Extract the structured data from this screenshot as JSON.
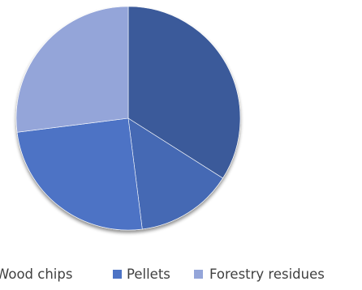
{
  "chart_data": {
    "type": "pie",
    "title": "",
    "categories": [
      "Wood chips",
      "Pellets",
      "Forestry residues"
    ],
    "slices": [
      {
        "label": "",
        "value": 34,
        "color": "#3b5a9a"
      },
      {
        "label": "Wood chips",
        "value": 14,
        "color": "#4469b4"
      },
      {
        "label": "Pellets",
        "value": 25,
        "color": "#4d73c5"
      },
      {
        "label": "Forestry residues",
        "value": 27,
        "color": "#94a5d9"
      }
    ],
    "legend": {
      "position": "bottom",
      "entries": [
        {
          "label": "Wood chips",
          "color": "#4469b4",
          "show_swatch": false
        },
        {
          "label": "Pellets",
          "color": "#4d73c5",
          "show_swatch": true
        },
        {
          "label": "Forestry residues",
          "color": "#94a5d9",
          "show_swatch": true
        }
      ]
    }
  }
}
